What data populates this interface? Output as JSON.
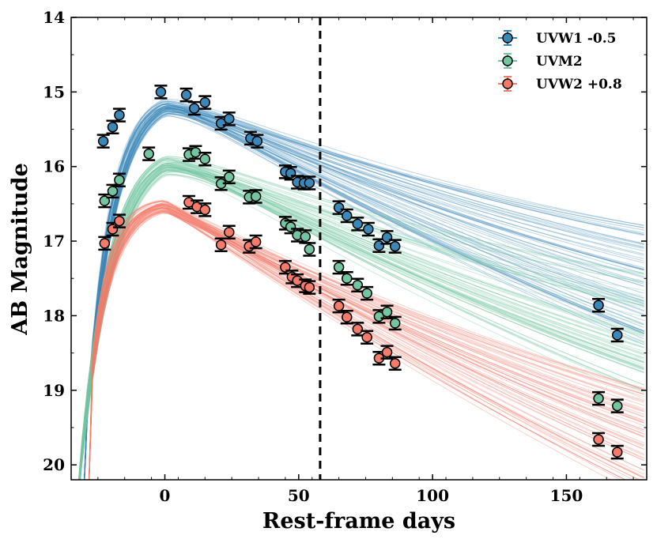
{
  "chart_data": {
    "type": "scatter",
    "title": "",
    "xlabel": "Rest-frame days",
    "ylabel": "AB Magnitude",
    "xlim": [
      -35,
      180
    ],
    "ylim": [
      20.2,
      14
    ],
    "y_inverted": true,
    "x_ticks": [
      0,
      50,
      100,
      150
    ],
    "y_ticks": [
      14,
      15,
      16,
      17,
      18,
      19,
      20
    ],
    "legend_position": "top-right",
    "grid": false,
    "reference_line": {
      "x": 58,
      "style": "dashed",
      "color": "#000000"
    },
    "series": [
      {
        "name": "UVW1 -0.5",
        "color": "#3a87b8",
        "model_color": "#3a87b8",
        "points": [
          {
            "x": -23,
            "y": 15.66
          },
          {
            "x": -19.5,
            "y": 15.47
          },
          {
            "x": -17,
            "y": 15.31
          },
          {
            "x": -1.5,
            "y": 15.0
          },
          {
            "x": 8,
            "y": 15.04
          },
          {
            "x": 11,
            "y": 15.22
          },
          {
            "x": 15,
            "y": 15.14
          },
          {
            "x": 21,
            "y": 15.42
          },
          {
            "x": 24,
            "y": 15.36
          },
          {
            "x": 32,
            "y": 15.62
          },
          {
            "x": 34.5,
            "y": 15.66
          },
          {
            "x": 45,
            "y": 16.07
          },
          {
            "x": 47,
            "y": 16.09
          },
          {
            "x": 49.5,
            "y": 16.21
          },
          {
            "x": 52,
            "y": 16.22
          },
          {
            "x": 54,
            "y": 16.22
          },
          {
            "x": 65,
            "y": 16.55
          },
          {
            "x": 68,
            "y": 16.66
          },
          {
            "x": 72,
            "y": 16.77
          },
          {
            "x": 76,
            "y": 16.84
          },
          {
            "x": 80,
            "y": 17.06
          },
          {
            "x": 83,
            "y": 16.95
          },
          {
            "x": 86,
            "y": 17.07
          },
          {
            "x": 162,
            "y": 17.86
          },
          {
            "x": 169,
            "y": 18.26
          }
        ]
      },
      {
        "name": "UVM2",
        "color": "#72c5a0",
        "model_color": "#72c5a0",
        "points": [
          {
            "x": -22.5,
            "y": 16.46
          },
          {
            "x": -19.5,
            "y": 16.33
          },
          {
            "x": -17,
            "y": 16.18
          },
          {
            "x": -6,
            "y": 15.83
          },
          {
            "x": 9,
            "y": 15.84
          },
          {
            "x": 11.5,
            "y": 15.81
          },
          {
            "x": 15,
            "y": 15.9
          },
          {
            "x": 21,
            "y": 16.23
          },
          {
            "x": 24,
            "y": 16.14
          },
          {
            "x": 31.5,
            "y": 16.41
          },
          {
            "x": 34,
            "y": 16.4
          },
          {
            "x": 45,
            "y": 16.76
          },
          {
            "x": 47,
            "y": 16.81
          },
          {
            "x": 49.5,
            "y": 16.92
          },
          {
            "x": 52.5,
            "y": 16.94
          },
          {
            "x": 54,
            "y": 17.11
          },
          {
            "x": 65,
            "y": 17.35
          },
          {
            "x": 68,
            "y": 17.5
          },
          {
            "x": 72,
            "y": 17.59
          },
          {
            "x": 75.5,
            "y": 17.7
          },
          {
            "x": 80,
            "y": 18.01
          },
          {
            "x": 83,
            "y": 17.95
          },
          {
            "x": 86,
            "y": 18.1
          },
          {
            "x": 162,
            "y": 19.11
          },
          {
            "x": 169,
            "y": 19.21
          }
        ]
      },
      {
        "name": "UVW2 +0.8",
        "color": "#f47a6a",
        "model_color": "#f47a6a",
        "points": [
          {
            "x": -22.5,
            "y": 17.03
          },
          {
            "x": -19.5,
            "y": 16.84
          },
          {
            "x": -17,
            "y": 16.73
          },
          {
            "x": 9,
            "y": 16.48
          },
          {
            "x": 12,
            "y": 16.54
          },
          {
            "x": 15,
            "y": 16.58
          },
          {
            "x": 21,
            "y": 17.05
          },
          {
            "x": 24,
            "y": 16.88
          },
          {
            "x": 31.5,
            "y": 17.07
          },
          {
            "x": 34,
            "y": 17.01
          },
          {
            "x": 45,
            "y": 17.35
          },
          {
            "x": 47.5,
            "y": 17.48
          },
          {
            "x": 49.5,
            "y": 17.53
          },
          {
            "x": 52.5,
            "y": 17.6
          },
          {
            "x": 54,
            "y": 17.62
          },
          {
            "x": 65,
            "y": 17.87
          },
          {
            "x": 68,
            "y": 18.02
          },
          {
            "x": 72,
            "y": 18.18
          },
          {
            "x": 75.5,
            "y": 18.29
          },
          {
            "x": 80,
            "y": 18.57
          },
          {
            "x": 83,
            "y": 18.49
          },
          {
            "x": 86,
            "y": 18.64
          },
          {
            "x": 162,
            "y": 19.66
          },
          {
            "x": 169,
            "y": 19.83
          }
        ]
      }
    ]
  }
}
